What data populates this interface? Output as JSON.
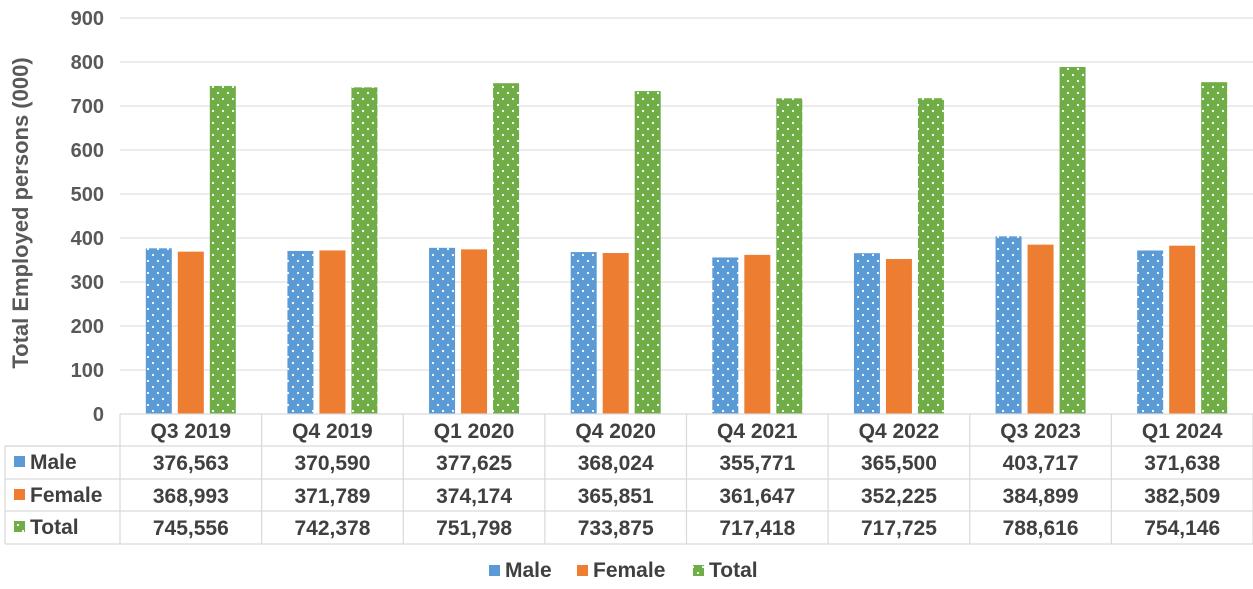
{
  "chart_data": {
    "type": "bar",
    "title": "",
    "ylabel": "Total Employed persons (000)",
    "xlabel": "",
    "ylim": [
      0,
      900
    ],
    "yticks": [
      "0",
      "100",
      "200",
      "300",
      "400",
      "500",
      "600",
      "700",
      "800",
      "900"
    ],
    "categories": [
      "Q3 2019",
      "Q4 2019",
      "Q1 2020",
      "Q4 2020",
      "Q4 2021",
      "Q4 2022",
      "Q3 2023",
      "Q1 2024"
    ],
    "series": [
      {
        "name": "Male",
        "color": "#5b9bd5",
        "pattern": "dotted",
        "values": [
          376.563,
          370.59,
          377.625,
          368.024,
          355.771,
          365.5,
          403.717,
          371.638
        ],
        "labels": [
          "376,563",
          "370,590",
          "377,625",
          "368,024",
          "355,771",
          "365,500",
          "403,717",
          "371,638"
        ]
      },
      {
        "name": "Female",
        "color": "#ed7d31",
        "pattern": "solid",
        "values": [
          368.993,
          371.789,
          374.174,
          365.851,
          361.647,
          352.225,
          384.899,
          382.509
        ],
        "labels": [
          "368,993",
          "371,789",
          "374,174",
          "365,851",
          "361,647",
          "352,225",
          "384,899",
          "382,509"
        ]
      },
      {
        "name": "Total",
        "color": "#70ad47",
        "pattern": "dotted",
        "values": [
          745.556,
          742.378,
          751.798,
          733.875,
          717.418,
          717.725,
          788.616,
          754.146
        ],
        "labels": [
          "745,556",
          "742,378",
          "751,798",
          "733,875",
          "717,418",
          "717,725",
          "788,616",
          "754,146"
        ]
      }
    ],
    "grid": true,
    "legend": "bottom",
    "data_table": true
  }
}
